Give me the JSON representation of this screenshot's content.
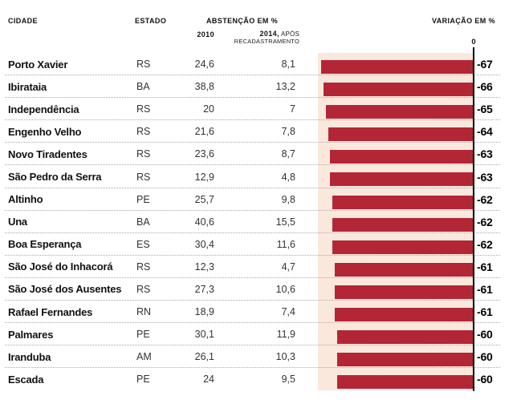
{
  "header": {
    "city": "CIDADE",
    "state": "ESTADO",
    "abstention": "ABSTENÇÃO EM %",
    "col_2010": "2010",
    "col_2014_bold": "2014,",
    "col_2014_rest": " APÓS",
    "col_2014_sub": "RECADASTRAMENTO",
    "variation": "VARIAÇÃO EM %",
    "zero": "0"
  },
  "colors": {
    "bar": "#b32636",
    "band": "#fbe8dc",
    "axis": "#000000",
    "separator": "#a9a9a9"
  },
  "rows": [
    {
      "city": "Porto Xavier",
      "state": "RS",
      "abstention_2010": "24,6",
      "abstention_2014": "8,1",
      "variation_label": "-67",
      "variation_value": -67
    },
    {
      "city": "Ibirataia",
      "state": "BA",
      "abstention_2010": "38,8",
      "abstention_2014": "13,2",
      "variation_label": "-66",
      "variation_value": -66
    },
    {
      "city": "Independência",
      "state": "RS",
      "abstention_2010": "20",
      "abstention_2014": "7",
      "variation_label": "-65",
      "variation_value": -65
    },
    {
      "city": "Engenho Velho",
      "state": "RS",
      "abstention_2010": "21,6",
      "abstention_2014": "7,8",
      "variation_label": "-64",
      "variation_value": -64
    },
    {
      "city": "Novo Tiradentes",
      "state": "RS",
      "abstention_2010": "23,6",
      "abstention_2014": "8,7",
      "variation_label": "-63",
      "variation_value": -63
    },
    {
      "city": "São Pedro da Serra",
      "state": "RS",
      "abstention_2010": "12,9",
      "abstention_2014": "4,8",
      "variation_label": "-63",
      "variation_value": -63
    },
    {
      "city": "Altinho",
      "state": "PE",
      "abstention_2010": "25,7",
      "abstention_2014": "9,8",
      "variation_label": "-62",
      "variation_value": -62
    },
    {
      "city": "Una",
      "state": "BA",
      "abstention_2010": "40,6",
      "abstention_2014": "15,5",
      "variation_label": "-62",
      "variation_value": -62
    },
    {
      "city": "Boa Esperança",
      "state": "ES",
      "abstention_2010": "30,4",
      "abstention_2014": "11,6",
      "variation_label": "-62",
      "variation_value": -62
    },
    {
      "city": "São José do Inhacorá",
      "state": "RS",
      "abstention_2010": "12,3",
      "abstention_2014": "4,7",
      "variation_label": "-61",
      "variation_value": -61
    },
    {
      "city": "São José dos Ausentes",
      "state": "RS",
      "abstention_2010": "27,3",
      "abstention_2014": "10,6",
      "variation_label": "-61",
      "variation_value": -61
    },
    {
      "city": "Rafael Fernandes",
      "state": "RN",
      "abstention_2010": "18,9",
      "abstention_2014": "7,4",
      "variation_label": "-61",
      "variation_value": -61
    },
    {
      "city": "Palmares",
      "state": "PE",
      "abstention_2010": "30,1",
      "abstention_2014": "11,9",
      "variation_label": "-60",
      "variation_value": -60
    },
    {
      "city": "Iranduba",
      "state": "AM",
      "abstention_2010": "26,1",
      "abstention_2014": "10,3",
      "variation_label": "-60",
      "variation_value": -60
    },
    {
      "city": "Escada",
      "state": "PE",
      "abstention_2010": "24",
      "abstention_2014": "9,5",
      "variation_label": "-60",
      "variation_value": -60
    }
  ],
  "chart_data": {
    "type": "bar",
    "orientation": "horizontal",
    "title": "",
    "categories": [
      "Porto Xavier",
      "Ibirataia",
      "Independência",
      "Engenho Velho",
      "Novo Tiradentes",
      "São Pedro da Serra",
      "Altinho",
      "Una",
      "Boa Esperança",
      "São José do Inhacorá",
      "São José dos Ausentes",
      "Rafael Fernandes",
      "Palmares",
      "Iranduba",
      "Escada"
    ],
    "category_states": [
      "RS",
      "BA",
      "RS",
      "RS",
      "RS",
      "RS",
      "PE",
      "BA",
      "ES",
      "RS",
      "RS",
      "RN",
      "PE",
      "AM",
      "PE"
    ],
    "series": [
      {
        "name": "Abstenção em % — 2010",
        "values": [
          24.6,
          38.8,
          20,
          21.6,
          23.6,
          12.9,
          25.7,
          40.6,
          30.4,
          12.3,
          27.3,
          18.9,
          30.1,
          26.1,
          24
        ]
      },
      {
        "name": "Abstenção em % — 2014, após recadastramento",
        "values": [
          8.1,
          13.2,
          7,
          7.8,
          8.7,
          4.8,
          9.8,
          15.5,
          11.6,
          4.7,
          10.6,
          7.4,
          11.9,
          10.3,
          9.5
        ]
      },
      {
        "name": "Variação em % (barras)",
        "values": [
          -67,
          -66,
          -65,
          -64,
          -63,
          -63,
          -62,
          -62,
          -62,
          -61,
          -61,
          -61,
          -60,
          -60,
          -60
        ]
      }
    ],
    "xlabel": "VARIAÇÃO EM %",
    "xlim": [
      -67,
      0
    ],
    "axis_zero_label": "0",
    "grid": false,
    "legend_position": "none"
  }
}
